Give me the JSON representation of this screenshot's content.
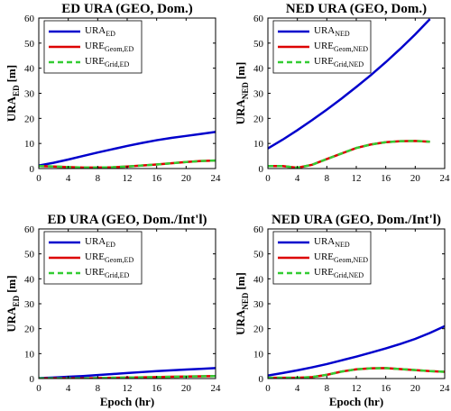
{
  "chart_data": [
    {
      "type": "line",
      "title": "ED URA (GEO, Dom.)",
      "xlabel": "",
      "ylabel": "URA",
      "ylabel_sub": "ED",
      "xlim": [
        0,
        24
      ],
      "ylim": [
        0,
        60
      ],
      "xticks": [
        0,
        4,
        8,
        12,
        16,
        20,
        24
      ],
      "yticks": [
        0,
        10,
        20,
        30,
        40,
        50,
        60
      ],
      "grid": false,
      "legend": "top-left",
      "x": [
        0,
        2,
        4,
        6,
        8,
        10,
        12,
        14,
        16,
        18,
        20,
        22,
        24
      ],
      "series": [
        {
          "name": "URA",
          "name_sub": "ED",
          "color": "#0000cc",
          "style": "solid",
          "values": [
            1.2,
            2.3,
            3.6,
            5.0,
            6.4,
            7.7,
            9.0,
            10.2,
            11.3,
            12.2,
            13.0,
            13.8,
            14.6
          ]
        },
        {
          "name": "URE",
          "name_sub": "Geom,ED",
          "color": "#dd0000",
          "style": "solid",
          "values": [
            1.0,
            0.8,
            0.6,
            0.4,
            0.4,
            0.5,
            0.8,
            1.2,
            1.6,
            2.1,
            2.6,
            3.0,
            3.2
          ]
        },
        {
          "name": "URE",
          "name_sub": "Grid,ED",
          "color": "#33cc33",
          "style": "dashed",
          "values": [
            1.0,
            0.8,
            0.6,
            0.4,
            0.4,
            0.5,
            0.8,
            1.2,
            1.6,
            2.1,
            2.6,
            3.0,
            3.2
          ]
        }
      ]
    },
    {
      "type": "line",
      "title": "NED URA (GEO, Dom.)",
      "xlabel": "",
      "ylabel": "URA",
      "ylabel_sub": "NED",
      "xlim": [
        0,
        24
      ],
      "ylim": [
        0,
        60
      ],
      "xticks": [
        0,
        4,
        8,
        12,
        16,
        20,
        24
      ],
      "yticks": [
        0,
        10,
        20,
        30,
        40,
        50,
        60
      ],
      "grid": false,
      "legend": "top-left",
      "x": [
        0,
        2,
        4,
        6,
        8,
        10,
        12,
        14,
        16,
        18,
        20,
        22
      ],
      "series": [
        {
          "name": "URA",
          "name_sub": "NED",
          "color": "#0000cc",
          "style": "solid",
          "values": [
            8.0,
            11.5,
            15.3,
            19.3,
            23.5,
            27.9,
            32.5,
            37.3,
            42.4,
            47.8,
            53.5,
            59.6
          ]
        },
        {
          "name": "URE",
          "name_sub": "Geom,NED",
          "color": "#dd0000",
          "style": "solid",
          "values": [
            1.0,
            1.0,
            0.3,
            1.5,
            3.8,
            6.0,
            8.2,
            9.6,
            10.5,
            10.9,
            11.0,
            10.7
          ]
        },
        {
          "name": "URE",
          "name_sub": "Grid,NED",
          "color": "#33cc33",
          "style": "dashed",
          "values": [
            1.0,
            1.0,
            0.3,
            1.5,
            3.8,
            6.0,
            8.2,
            9.6,
            10.5,
            10.9,
            11.0,
            10.7
          ]
        }
      ]
    },
    {
      "type": "line",
      "title": "ED URA (GEO, Dom./Int'l)",
      "xlabel": "Epoch (hr)",
      "ylabel": "URA",
      "ylabel_sub": "ED",
      "xlim": [
        0,
        24
      ],
      "ylim": [
        0,
        60
      ],
      "xticks": [
        0,
        4,
        8,
        12,
        16,
        20,
        24
      ],
      "yticks": [
        0,
        10,
        20,
        30,
        40,
        50,
        60
      ],
      "grid": false,
      "legend": "top-left",
      "x": [
        0,
        2,
        4,
        6,
        8,
        10,
        12,
        14,
        16,
        18,
        20,
        22,
        24
      ],
      "series": [
        {
          "name": "URA",
          "name_sub": "ED",
          "color": "#0000cc",
          "style": "solid",
          "values": [
            0.2,
            0.4,
            0.7,
            1.0,
            1.4,
            1.8,
            2.2,
            2.6,
            3.0,
            3.3,
            3.6,
            3.9,
            4.2
          ]
        },
        {
          "name": "URE",
          "name_sub": "Geom,ED",
          "color": "#dd0000",
          "style": "solid",
          "values": [
            0.1,
            0.1,
            0.1,
            0.1,
            0.2,
            0.3,
            0.4,
            0.5,
            0.6,
            0.7,
            0.8,
            0.9,
            1.0
          ]
        },
        {
          "name": "URE",
          "name_sub": "Grid,ED",
          "color": "#33cc33",
          "style": "dashed",
          "values": [
            0.1,
            0.1,
            0.1,
            0.1,
            0.2,
            0.3,
            0.4,
            0.5,
            0.6,
            0.7,
            0.8,
            0.9,
            1.0
          ]
        }
      ]
    },
    {
      "type": "line",
      "title": "NED URA (GEO, Dom./Int'l)",
      "xlabel": "Epoch (hr)",
      "ylabel": "URA",
      "ylabel_sub": "NED",
      "xlim": [
        0,
        24
      ],
      "ylim": [
        0,
        60
      ],
      "xticks": [
        0,
        4,
        8,
        12,
        16,
        20,
        24
      ],
      "yticks": [
        0,
        10,
        20,
        30,
        40,
        50,
        60
      ],
      "grid": false,
      "legend": "top-left",
      "x": [
        0,
        2,
        4,
        6,
        8,
        10,
        12,
        14,
        16,
        18,
        20,
        22,
        24
      ],
      "series": [
        {
          "name": "URA",
          "name_sub": "NED",
          "color": "#0000cc",
          "style": "solid",
          "values": [
            1.2,
            2.2,
            3.3,
            4.5,
            5.8,
            7.3,
            8.8,
            10.4,
            12.1,
            13.9,
            15.9,
            18.3,
            21.0
          ]
        },
        {
          "name": "URE",
          "name_sub": "Geom,NED",
          "color": "#dd0000",
          "style": "solid",
          "values": [
            0.3,
            0.3,
            0.3,
            0.6,
            1.5,
            2.8,
            3.7,
            4.1,
            4.2,
            3.8,
            3.4,
            3.0,
            2.7
          ]
        },
        {
          "name": "URE",
          "name_sub": "Grid,NED",
          "color": "#33cc33",
          "style": "dashed",
          "values": [
            0.3,
            0.3,
            0.3,
            0.6,
            1.5,
            2.8,
            3.7,
            4.1,
            4.2,
            3.8,
            3.4,
            3.0,
            2.7
          ]
        }
      ]
    }
  ],
  "ylabel_unit": "[m]"
}
